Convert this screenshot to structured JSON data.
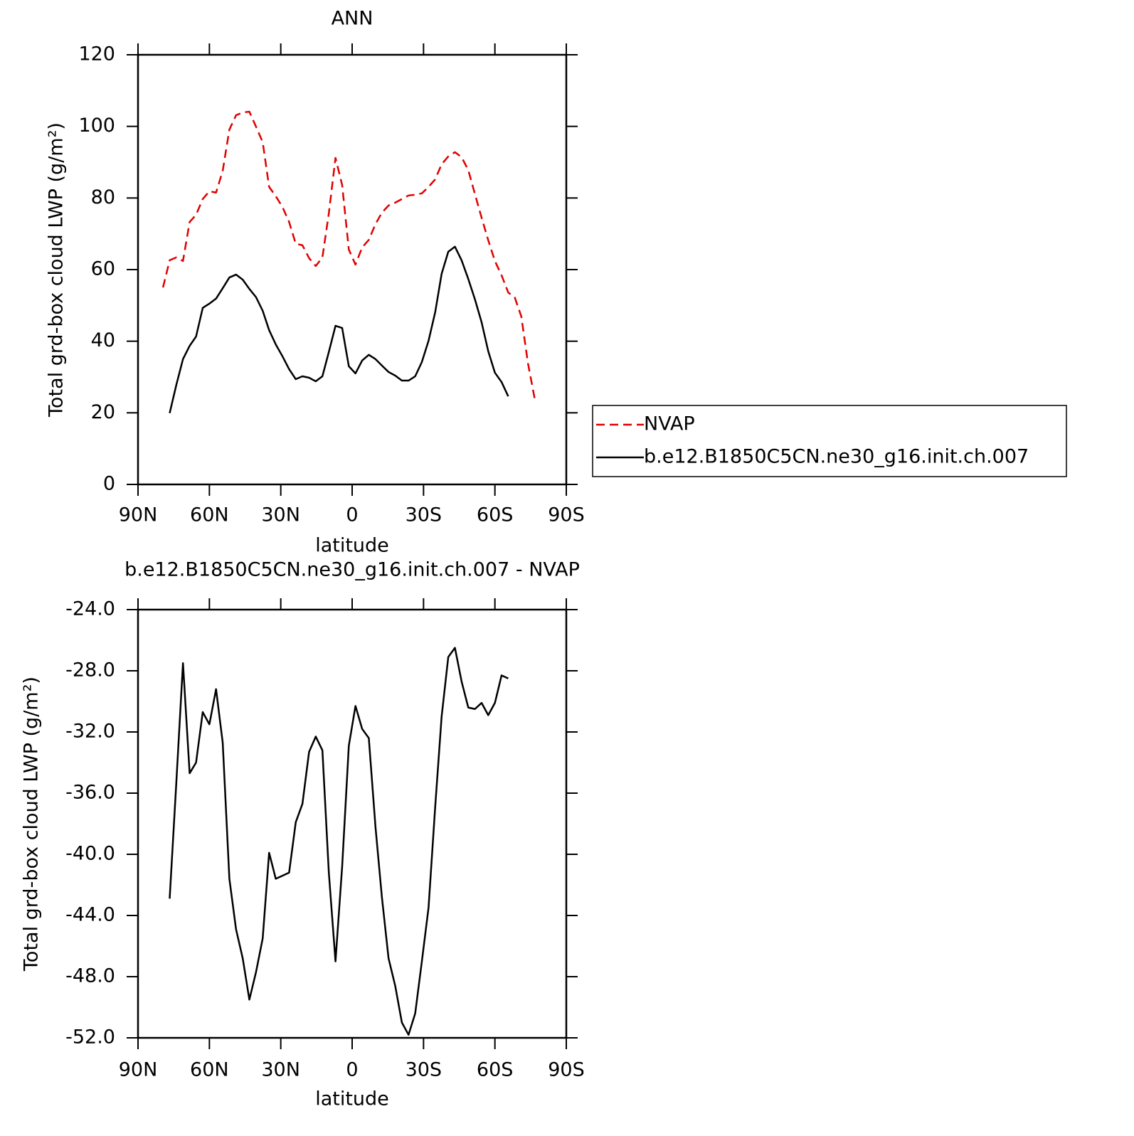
{
  "chart_data": [
    {
      "type": "line",
      "title": "ANN",
      "x_label": "latitude",
      "y_label": "Total grd-box cloud LWP (g/m²)",
      "xlim": [
        90,
        -90
      ],
      "xticks": [
        {
          "value": 90,
          "label": "90N"
        },
        {
          "value": 60,
          "label": "60N"
        },
        {
          "value": 30,
          "label": "30N"
        },
        0,
        {
          "value": -30,
          "label": "30S"
        },
        {
          "value": -60,
          "label": "60S"
        },
        {
          "value": -90,
          "label": "90S"
        }
      ],
      "ylim": [
        0,
        120
      ],
      "yticks": [
        0,
        20,
        40,
        60,
        80,
        100,
        120
      ],
      "legend": "right",
      "x": [
        79.5,
        76.7,
        73.9,
        71.1,
        68.3,
        65.6,
        62.8,
        60.0,
        57.2,
        54.4,
        51.6,
        48.8,
        46.0,
        43.2,
        40.4,
        37.6,
        34.9,
        32.1,
        29.3,
        26.5,
        23.7,
        20.9,
        18.1,
        15.3,
        12.5,
        9.8,
        7.0,
        4.2,
        1.4,
        -1.4,
        -4.2,
        -7.0,
        -9.8,
        -12.5,
        -15.3,
        -18.1,
        -20.9,
        -23.7,
        -26.5,
        -29.3,
        -32.1,
        -34.9,
        -37.6,
        -40.4,
        -43.2,
        -46.0,
        -48.8,
        -51.6,
        -54.4,
        -57.2,
        -60.0,
        -62.8,
        -65.6,
        -68.3,
        -71.1,
        -73.9,
        -76.7
      ],
      "series": [
        {
          "name": "NVAP",
          "color": "#e00000",
          "dashed": true,
          "values": [
            55.0,
            62.6,
            63.4,
            62.4,
            73.3,
            75.3,
            79.7,
            81.9,
            81.5,
            87.6,
            99.1,
            103.1,
            103.9,
            104.1,
            99.9,
            95.6,
            83.1,
            80.5,
            77.5,
            73.3,
            67.2,
            66.8,
            63.2,
            61.0,
            63.4,
            75.7,
            91.2,
            83.6,
            65.6,
            61.4,
            66.2,
            68.3,
            72.7,
            75.9,
            77.9,
            78.7,
            79.7,
            80.7,
            80.9,
            81.3,
            83.1,
            85.2,
            89.4,
            91.6,
            92.8,
            91.4,
            87.8,
            81.1,
            74.5,
            68.2,
            62.4,
            58.4,
            53.6,
            52.3,
            46.9,
            33.8,
            24.0
          ]
        },
        {
          "name": "b.e12.B1850C5CN.ne30_g16.init.ch.007",
          "color": "#000000",
          "dashed": false,
          "values": [
            null,
            19.9,
            27.8,
            35.0,
            38.7,
            41.3,
            49.3,
            50.5,
            51.9,
            54.8,
            57.8,
            58.6,
            57.2,
            54.6,
            52.3,
            48.5,
            43.1,
            39.1,
            35.8,
            32.2,
            29.4,
            30.2,
            29.8,
            28.8,
            30.2,
            37.0,
            44.3,
            43.7,
            33.0,
            31.0,
            34.6,
            36.2,
            35.0,
            33.2,
            31.4,
            30.4,
            29.0,
            29.0,
            30.2,
            34.2,
            40.1,
            48.1,
            58.8,
            65.0,
            66.4,
            62.6,
            57.4,
            51.7,
            45.3,
            37.2,
            31.2,
            28.6,
            24.6,
            null,
            null,
            null,
            null
          ]
        }
      ]
    },
    {
      "type": "line",
      "title": "b.e12.B1850C5CN.ne30_g16.init.ch.007 - NVAP",
      "x_label": "latitude",
      "y_label": "Total grd-box cloud LWP (g/m²)",
      "xlim": [
        90,
        -90
      ],
      "xticks": [
        {
          "value": 90,
          "label": "90N"
        },
        {
          "value": 60,
          "label": "60N"
        },
        {
          "value": 30,
          "label": "30N"
        },
        0,
        {
          "value": -30,
          "label": "30S"
        },
        {
          "value": -60,
          "label": "60S"
        },
        {
          "value": -90,
          "label": "90S"
        }
      ],
      "ylim": [
        -52,
        -24
      ],
      "yticks": [
        {
          "value": -52,
          "label": "-52.0"
        },
        {
          "value": -48,
          "label": "-48.0"
        },
        {
          "value": -44,
          "label": "-44.0"
        },
        {
          "value": -40,
          "label": "-40.0"
        },
        {
          "value": -36,
          "label": "-36.0"
        },
        {
          "value": -32,
          "label": "-32.0"
        },
        {
          "value": -28,
          "label": "-28.0"
        },
        {
          "value": -24,
          "label": "-24.0"
        }
      ],
      "x": [
        76.7,
        73.9,
        71.1,
        68.3,
        65.6,
        62.8,
        60.0,
        57.2,
        54.4,
        51.6,
        48.8,
        46.0,
        43.2,
        40.4,
        37.6,
        34.9,
        32.1,
        29.3,
        26.5,
        23.7,
        20.9,
        18.1,
        15.3,
        12.5,
        9.8,
        7.0,
        4.2,
        1.4,
        -1.4,
        -4.2,
        -7.0,
        -9.8,
        -12.5,
        -15.3,
        -18.1,
        -20.9,
        -23.7,
        -26.5,
        -29.3,
        -32.1,
        -34.9,
        -37.6,
        -40.4,
        -43.2,
        -46.0,
        -48.8,
        -51.6,
        -54.4,
        -57.2,
        -60.0,
        -62.8,
        -65.6
      ],
      "series": [
        {
          "color": "#000000",
          "dashed": false,
          "values": [
            -42.9,
            -35.3,
            -27.5,
            -34.7,
            -34.0,
            -30.7,
            -31.5,
            -29.2,
            -32.7,
            -41.6,
            -44.9,
            -46.8,
            -49.5,
            -47.7,
            -45.5,
            -39.9,
            -41.6,
            -41.4,
            -41.2,
            -37.9,
            -36.7,
            -33.3,
            -32.3,
            -33.2,
            -41.2,
            -47.0,
            -40.8,
            -32.9,
            -30.3,
            -31.8,
            -32.4,
            -38.2,
            -42.8,
            -46.8,
            -48.6,
            -51.0,
            -51.8,
            -50.4,
            -47.0,
            -43.5,
            -36.9,
            -31.0,
            -27.1,
            -26.5,
            -28.7,
            -30.4,
            -30.5,
            -30.1,
            -30.9,
            -30.1,
            -28.3,
            -28.5
          ]
        }
      ]
    }
  ]
}
